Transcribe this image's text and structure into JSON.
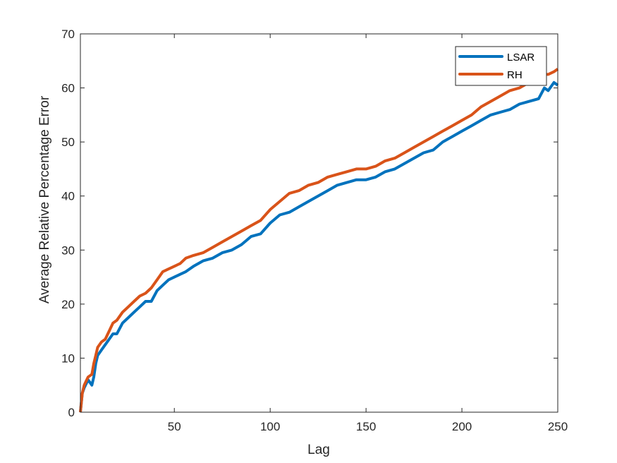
{
  "chart_data": {
    "type": "line",
    "xlabel": "Lag",
    "ylabel": "Average Relative Percentage Error",
    "xlim": [
      1,
      250
    ],
    "ylim": [
      0,
      70
    ],
    "xticks": [
      50,
      100,
      150,
      200,
      250
    ],
    "yticks": [
      0,
      10,
      20,
      30,
      40,
      50,
      60,
      70
    ],
    "grid": false,
    "legend_position": "top-right",
    "series": [
      {
        "name": "LSAR",
        "color": "#0072BD",
        "x": [
          1,
          2,
          3,
          5,
          7,
          8,
          9,
          10,
          12,
          14,
          16,
          18,
          20,
          23,
          26,
          29,
          32,
          35,
          38,
          41,
          44,
          47,
          50,
          53,
          56,
          60,
          65,
          70,
          75,
          80,
          85,
          90,
          95,
          100,
          105,
          110,
          115,
          120,
          125,
          130,
          135,
          140,
          145,
          150,
          155,
          160,
          165,
          170,
          175,
          180,
          185,
          190,
          195,
          200,
          205,
          210,
          215,
          220,
          225,
          230,
          235,
          240,
          243,
          245,
          248,
          250
        ],
        "values": [
          0,
          3.5,
          4.5,
          6,
          5,
          6.5,
          9,
          10.5,
          11.5,
          12.5,
          13.5,
          14.5,
          14.5,
          16.5,
          17.5,
          18.5,
          19.5,
          20.5,
          20.5,
          22.5,
          23.5,
          24.5,
          25,
          25.5,
          26,
          27,
          28,
          28.5,
          29.5,
          30,
          31,
          32.5,
          33,
          35,
          36.5,
          37,
          38,
          39,
          40,
          41,
          42,
          42.5,
          43,
          43,
          43.5,
          44.5,
          45,
          46,
          47,
          48,
          48.5,
          50,
          51,
          52,
          53,
          54,
          55,
          55.5,
          56,
          57,
          57.5,
          58,
          60,
          59.5,
          61,
          60.5
        ]
      },
      {
        "name": "RH",
        "color": "#D95319",
        "x": [
          1,
          2,
          3,
          5,
          7,
          8,
          9,
          10,
          12,
          14,
          16,
          18,
          20,
          23,
          26,
          29,
          32,
          35,
          38,
          41,
          44,
          47,
          50,
          53,
          56,
          60,
          65,
          70,
          75,
          80,
          85,
          90,
          95,
          100,
          105,
          110,
          115,
          120,
          125,
          130,
          135,
          140,
          145,
          150,
          155,
          160,
          165,
          170,
          175,
          180,
          185,
          190,
          195,
          200,
          205,
          210,
          215,
          220,
          225,
          230,
          235,
          240,
          243,
          245,
          248,
          250
        ],
        "values": [
          0,
          3.5,
          5,
          6.5,
          7,
          9,
          10.5,
          12,
          13,
          13.5,
          15,
          16.5,
          17,
          18.5,
          19.5,
          20.5,
          21.5,
          22,
          23,
          24.5,
          26,
          26.5,
          27,
          27.5,
          28.5,
          29,
          29.5,
          30.5,
          31.5,
          32.5,
          33.5,
          34.5,
          35.5,
          37.5,
          39,
          40.5,
          41,
          42,
          42.5,
          43.5,
          44,
          44.5,
          45,
          45,
          45.5,
          46.5,
          47,
          48,
          49,
          50,
          51,
          52,
          53,
          54,
          55,
          56.5,
          57.5,
          58.5,
          59.5,
          60,
          61,
          61.5,
          62.5,
          62.5,
          63,
          63.5
        ]
      }
    ]
  }
}
